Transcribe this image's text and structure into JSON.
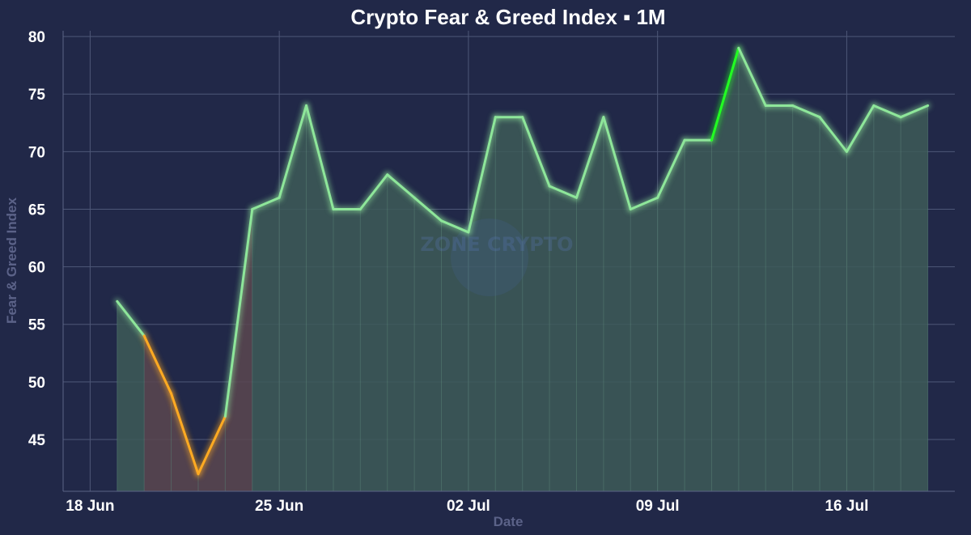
{
  "chart_data": {
    "type": "line",
    "title": "Crypto Fear & Greed Index ▪ 1M",
    "xlabel": "Date",
    "ylabel": "Fear & Greed Index",
    "x": [
      "2024-06-19",
      "2024-06-20",
      "2024-06-21",
      "2024-06-22",
      "2024-06-23",
      "2024-06-24",
      "2024-06-25",
      "2024-06-26",
      "2024-06-27",
      "2024-06-28",
      "2024-06-29",
      "2024-06-30",
      "2024-07-01",
      "2024-07-02",
      "2024-07-03",
      "2024-07-04",
      "2024-07-05",
      "2024-07-06",
      "2024-07-07",
      "2024-07-08",
      "2024-07-09",
      "2024-07-10",
      "2024-07-11",
      "2024-07-12",
      "2024-07-13",
      "2024-07-14",
      "2024-07-15",
      "2024-07-16",
      "2024-07-17",
      "2024-07-18",
      "2024-07-19"
    ],
    "values": [
      57,
      54,
      49,
      42,
      47,
      65,
      66,
      74,
      65,
      65,
      68,
      66,
      64,
      63,
      73,
      73,
      67,
      66,
      73,
      65,
      66,
      71,
      71,
      79,
      74,
      74,
      73,
      70,
      74,
      73,
      74
    ],
    "xtick_labels": [
      "18 Jun",
      "25 Jun",
      "02 Jul",
      "09 Jul",
      "16 Jul"
    ],
    "ytick_labels": [
      "45",
      "50",
      "55",
      "60",
      "65",
      "70",
      "75",
      "80"
    ],
    "ylim": [
      40.5,
      80.5
    ],
    "grid": true,
    "colors": {
      "background": "#212848",
      "greed_line": "#8ee69a",
      "fear_line": "#ffaa22",
      "extreme_greed_line": "#22ff22",
      "greed_fill": "#3d5b58",
      "fear_fill": "#5b4650",
      "extreme_greed_fill": "#1e5a47"
    },
    "watermark": "ZONE CRYPTO"
  }
}
